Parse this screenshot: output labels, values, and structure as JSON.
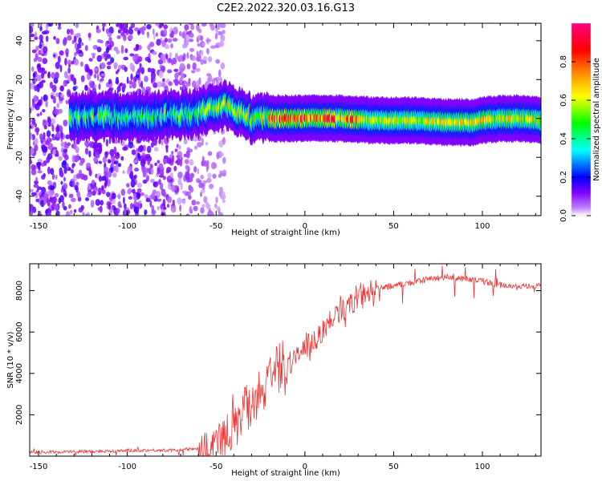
{
  "title": "C2E2.2022.320.03.16.G13",
  "chart_data": [
    {
      "type": "heatmap",
      "xlabel": "Height of straight line (km)",
      "ylabel": "Frequency (Hz)",
      "xlim": [
        -155,
        133
      ],
      "ylim": [
        -50,
        49
      ],
      "xticks": [
        -150,
        -100,
        -50,
        0,
        50,
        100
      ],
      "yticks": [
        -40,
        -20,
        0,
        20,
        40
      ],
      "colorbar": {
        "label": "Normalized spectral amplitude",
        "range": [
          0,
          1
        ],
        "ticks": [
          "0.0",
          "0.2",
          "0.4",
          "0.6",
          "0.8"
        ],
        "colormap": [
          "#ffffff",
          "#8000ff",
          "#0000ff",
          "#00ffff",
          "#00ff00",
          "#ffff00",
          "#ff8000",
          "#ff0000",
          "#ff0080"
        ]
      },
      "signal_trace": {
        "description": "Doppler line frequency along height",
        "x": [
          -130,
          -110,
          -90,
          -70,
          -60,
          -50,
          -45,
          -40,
          -35,
          -30,
          -25,
          -20,
          -10,
          0,
          20,
          40,
          60,
          80,
          95,
          100,
          110,
          120,
          133
        ],
        "y": [
          1,
          1,
          1,
          2,
          3,
          6,
          7,
          5,
          2,
          0,
          0,
          0,
          0,
          0,
          0,
          -1,
          -1,
          -2,
          -2,
          -1,
          0,
          0,
          -1
        ]
      },
      "noise_region_x": [
        -155,
        -60
      ]
    },
    {
      "type": "line",
      "xlabel": "Height of straight line (km)",
      "ylabel": "SNR (10 * v/v)",
      "xlim": [
        -155,
        133
      ],
      "ylim": [
        0,
        9300
      ],
      "xticks": [
        -150,
        -100,
        -50,
        0,
        50,
        100
      ],
      "yticks": [
        2000,
        4000,
        6000,
        8000
      ],
      "color": "#ee3333",
      "envelope": {
        "x": [
          -155,
          -120,
          -90,
          -70,
          -60,
          -50,
          -45,
          -40,
          -35,
          -30,
          -25,
          -20,
          -15,
          -10,
          -5,
          0,
          5,
          10,
          20,
          30,
          40,
          50,
          60,
          70,
          80,
          90,
          100,
          110,
          120,
          133
        ],
        "y": [
          200,
          250,
          300,
          300,
          400,
          700,
          1200,
          2000,
          2600,
          3100,
          3600,
          4000,
          4400,
          4700,
          5000,
          5300,
          5700,
          6200,
          7200,
          7800,
          8100,
          8300,
          8400,
          8600,
          8700,
          8600,
          8500,
          8300,
          8200,
          8300
        ]
      }
    }
  ]
}
